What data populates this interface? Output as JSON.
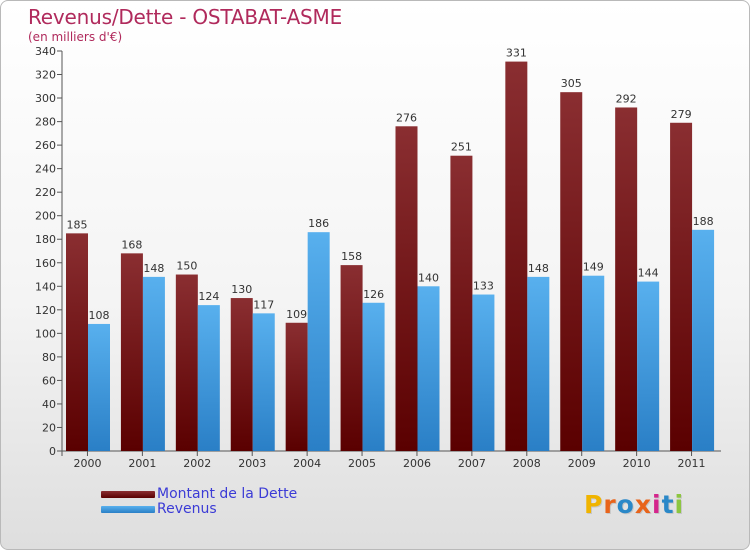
{
  "title": "Revenus/Dette - OSTABAT-ASME",
  "subtitle": "(en milliers d'€)",
  "logo": {
    "text": "Proxiti",
    "colors": [
      "#f0b400",
      "#e8641b",
      "#2a88c8",
      "#e8641b",
      "#d4258c",
      "#2a88c8",
      "#8cc63f"
    ]
  },
  "colors": {
    "title": "#b02a5c",
    "dette": "#7a1c1c",
    "revenus": "#3f9ae0",
    "legend_text": "#3b3bd6"
  },
  "chart_data": {
    "type": "bar",
    "categories": [
      "2000",
      "2001",
      "2002",
      "2003",
      "2004",
      "2005",
      "2006",
      "2007",
      "2008",
      "2009",
      "2010",
      "2011"
    ],
    "series": [
      {
        "name": "Montant de la Dette",
        "values": [
          185,
          168,
          150,
          130,
          109,
          158,
          276,
          251,
          331,
          305,
          292,
          279
        ]
      },
      {
        "name": "Revenus",
        "values": [
          108,
          148,
          124,
          117,
          186,
          126,
          140,
          133,
          148,
          149,
          144,
          188
        ]
      }
    ],
    "ylim": [
      0,
      340
    ],
    "yticks": [
      0,
      20,
      40,
      60,
      80,
      100,
      120,
      140,
      160,
      180,
      200,
      220,
      240,
      260,
      280,
      300,
      320,
      340
    ],
    "grid": false,
    "legend_position": "bottom-left"
  }
}
